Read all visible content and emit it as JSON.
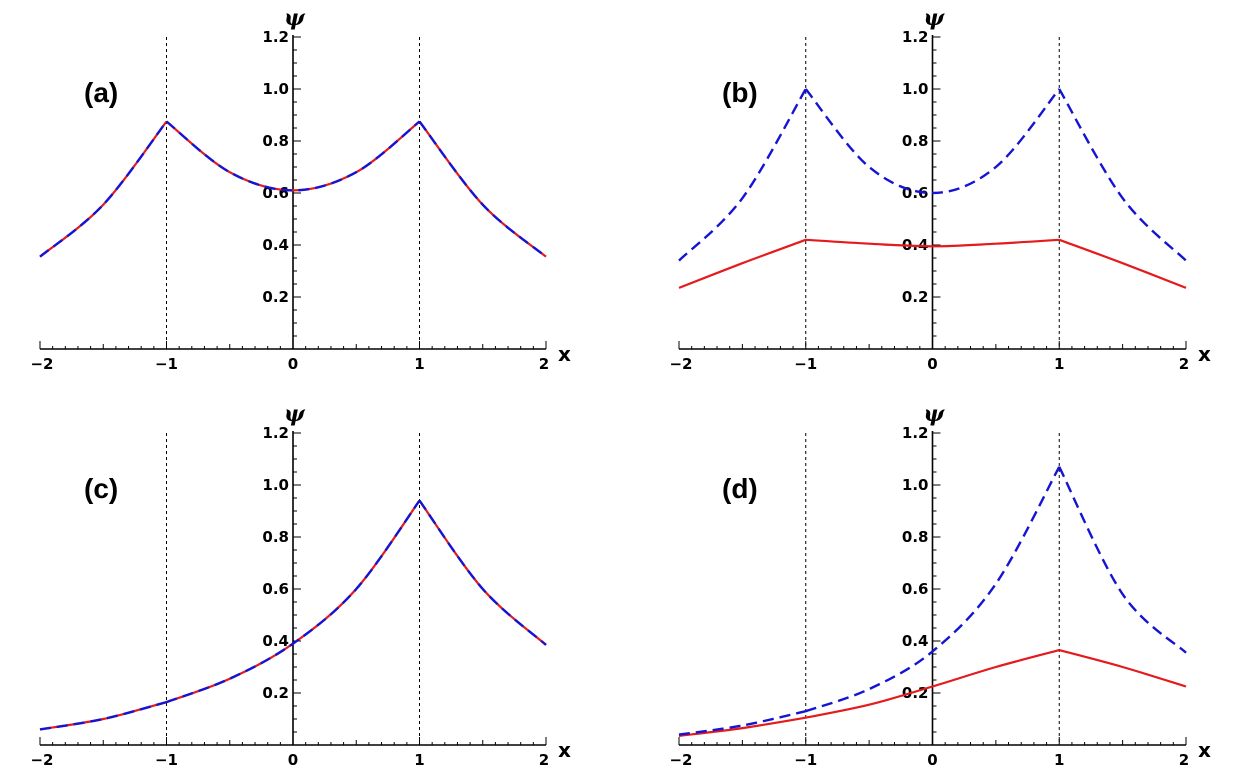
{
  "chart_data": [
    {
      "type": "line",
      "panel_label": "(a)",
      "xlabel": "x",
      "ylabel": "ψ",
      "xlim": [
        -2,
        2
      ],
      "ylim": [
        0,
        1.2
      ],
      "x_ticks": [
        -2,
        -1,
        0,
        1,
        2
      ],
      "x_tick_labels": [
        "−2",
        "−1",
        "0",
        "1",
        "2"
      ],
      "y_ticks": [
        0.2,
        0.4,
        0.6,
        0.8,
        1.0,
        1.2
      ],
      "y_tick_labels": [
        "0.2",
        "0.4",
        "0.6",
        "0.8",
        "1.0",
        "1.2"
      ],
      "reference_lines_x": [
        -1,
        1
      ],
      "series": [
        {
          "name": "solid (red)",
          "color": "#e41a1c",
          "style": "solid",
          "x": [
            -2,
            -1.5,
            -1,
            -0.5,
            0,
            0.5,
            1,
            1.5,
            2
          ],
          "y": [
            0.355,
            0.555,
            0.875,
            0.68,
            0.61,
            0.68,
            0.875,
            0.555,
            0.355
          ]
        },
        {
          "name": "dashed (blue)",
          "color": "#1414d2",
          "style": "dashed",
          "x": [
            -2,
            -1.5,
            -1,
            -0.5,
            0,
            0.5,
            1,
            1.5,
            2
          ],
          "y": [
            0.355,
            0.555,
            0.875,
            0.68,
            0.61,
            0.68,
            0.875,
            0.555,
            0.355
          ]
        }
      ]
    },
    {
      "type": "line",
      "panel_label": "(b)",
      "xlabel": "x",
      "ylabel": "ψ",
      "xlim": [
        -2,
        2
      ],
      "ylim": [
        0,
        1.2
      ],
      "x_ticks": [
        -2,
        -1,
        0,
        1,
        2
      ],
      "x_tick_labels": [
        "−2",
        "−1",
        "0",
        "1",
        "2"
      ],
      "y_ticks": [
        0.2,
        0.4,
        0.6,
        0.8,
        1.0,
        1.2
      ],
      "y_tick_labels": [
        "0.2",
        "0.4",
        "0.6",
        "0.8",
        "1.0",
        "1.2"
      ],
      "reference_lines_x": [
        -1,
        1
      ],
      "series": [
        {
          "name": "solid (red)",
          "color": "#e41a1c",
          "style": "solid",
          "x": [
            -2,
            -1.5,
            -1,
            -0.5,
            0,
            0.5,
            1,
            1.5,
            2
          ],
          "y": [
            0.235,
            0.33,
            0.42,
            0.405,
            0.395,
            0.405,
            0.42,
            0.33,
            0.235
          ]
        },
        {
          "name": "dashed (blue)",
          "color": "#1414d2",
          "style": "dashed",
          "x": [
            -2,
            -1.5,
            -1,
            -0.5,
            0,
            0.5,
            1,
            1.5,
            2
          ],
          "y": [
            0.34,
            0.58,
            1.0,
            0.7,
            0.6,
            0.7,
            1.0,
            0.58,
            0.34
          ]
        }
      ]
    },
    {
      "type": "line",
      "panel_label": "(c)",
      "xlabel": "x",
      "ylabel": "ψ",
      "xlim": [
        -2,
        2
      ],
      "ylim": [
        0,
        1.2
      ],
      "x_ticks": [
        -2,
        -1,
        0,
        1,
        2
      ],
      "x_tick_labels": [
        "−2",
        "−1",
        "0",
        "1",
        "2"
      ],
      "y_ticks": [
        0.2,
        0.4,
        0.6,
        0.8,
        1.0,
        1.2
      ],
      "y_tick_labels": [
        "0.2",
        "0.4",
        "0.6",
        "0.8",
        "1.0",
        "1.2"
      ],
      "reference_lines_x": [
        -1,
        1
      ],
      "series": [
        {
          "name": "solid (red)",
          "color": "#e41a1c",
          "style": "solid",
          "x": [
            -2,
            -1.5,
            -1,
            -0.5,
            0,
            0.5,
            1,
            1.5,
            2
          ],
          "y": [
            0.06,
            0.1,
            0.165,
            0.255,
            0.39,
            0.6,
            0.94,
            0.6,
            0.385
          ]
        },
        {
          "name": "dashed (blue)",
          "color": "#1414d2",
          "style": "dashed",
          "x": [
            -2,
            -1.5,
            -1,
            -0.5,
            0,
            0.5,
            1,
            1.5,
            2
          ],
          "y": [
            0.06,
            0.1,
            0.165,
            0.255,
            0.39,
            0.6,
            0.94,
            0.6,
            0.385
          ]
        }
      ]
    },
    {
      "type": "line",
      "panel_label": "(d)",
      "xlabel": "x",
      "ylabel": "ψ",
      "xlim": [
        -2,
        2
      ],
      "ylim": [
        0,
        1.2
      ],
      "x_ticks": [
        -2,
        -1,
        0,
        1,
        2
      ],
      "x_tick_labels": [
        "−2",
        "−1",
        "0",
        "1",
        "2"
      ],
      "y_ticks": [
        0.2,
        0.4,
        0.6,
        0.8,
        1.0,
        1.2
      ],
      "y_tick_labels": [
        "0.2",
        "0.4",
        "0.6",
        "0.8",
        "1.0",
        "1.2"
      ],
      "reference_lines_x": [
        -1,
        1
      ],
      "series": [
        {
          "name": "solid (red)",
          "color": "#e41a1c",
          "style": "solid",
          "x": [
            -2,
            -1.5,
            -1,
            -0.5,
            0,
            0.5,
            1,
            1.5,
            2
          ],
          "y": [
            0.035,
            0.065,
            0.105,
            0.155,
            0.225,
            0.3,
            0.365,
            0.3,
            0.225
          ]
        },
        {
          "name": "dashed (blue)",
          "color": "#1414d2",
          "style": "dashed",
          "x": [
            -2,
            -1.5,
            -1,
            -0.5,
            0,
            0.5,
            1,
            1.5,
            2
          ],
          "y": [
            0.04,
            0.075,
            0.13,
            0.215,
            0.36,
            0.62,
            1.07,
            0.58,
            0.355
          ]
        }
      ]
    }
  ]
}
